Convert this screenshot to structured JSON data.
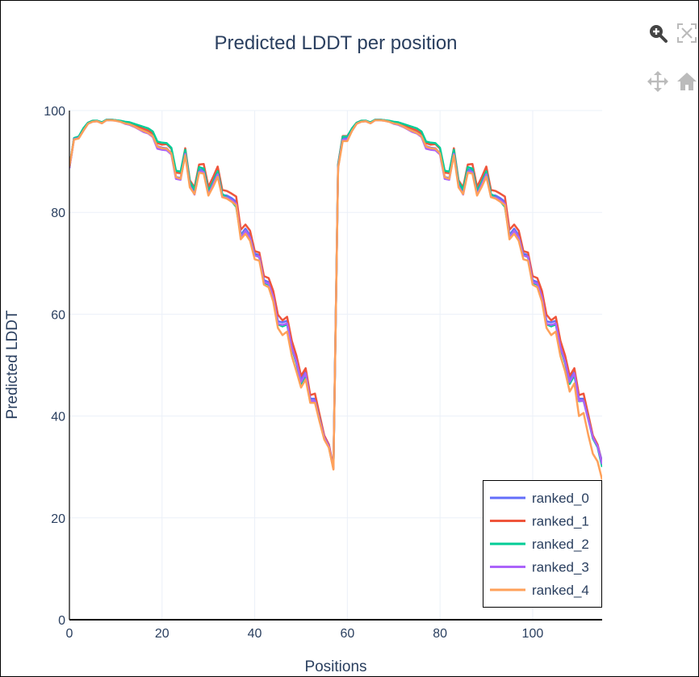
{
  "modebar": {
    "zoom_label": "Zoom",
    "autoscale_label": "Autoscale",
    "pan_label": "Pan",
    "reset_label": "Reset axes"
  },
  "chart_data": {
    "type": "line",
    "title": "Predicted LDDT per position",
    "xlabel": "Positions",
    "ylabel": "Predicted LDDT",
    "xlim": [
      0,
      115
    ],
    "ylim": [
      0,
      100
    ],
    "xticks": [
      0,
      20,
      40,
      60,
      80,
      100
    ],
    "yticks": [
      0,
      20,
      40,
      60,
      80,
      100
    ],
    "grid": true,
    "legend_position": "bottom-right",
    "x": [
      0,
      1,
      2,
      3,
      4,
      5,
      6,
      7,
      8,
      9,
      10,
      11,
      12,
      13,
      14,
      15,
      16,
      17,
      18,
      19,
      20,
      21,
      22,
      23,
      24,
      25,
      26,
      27,
      28,
      29,
      30,
      31,
      32,
      33,
      34,
      35,
      36,
      37,
      38,
      39,
      40,
      41,
      42,
      43,
      44,
      45,
      46,
      47,
      48,
      49,
      50,
      51,
      52,
      53,
      54,
      55,
      56,
      57,
      58,
      59,
      60,
      61,
      62,
      63,
      64,
      65,
      66,
      67,
      68,
      69,
      70,
      71,
      72,
      73,
      74,
      75,
      76,
      77,
      78,
      79,
      80,
      81,
      82,
      83,
      84,
      85,
      86,
      87,
      88,
      89,
      90,
      91,
      92,
      93,
      94,
      95,
      96,
      97,
      98,
      99,
      100,
      101,
      102,
      103,
      104,
      105,
      106,
      107,
      108,
      109,
      110,
      111,
      112,
      113,
      114,
      115
    ],
    "series": [
      {
        "name": "ranked_0",
        "color": "#636efa",
        "values": [
          88.8,
          94.5,
          94.8,
          96.2,
          97.5,
          97.9,
          98.0,
          97.6,
          98.2,
          98.2,
          98.1,
          97.9,
          97.5,
          97.3,
          96.9,
          96.4,
          96.0,
          95.7,
          95.1,
          93.0,
          92.7,
          92.6,
          91.6,
          87.0,
          86.7,
          91.7,
          85.5,
          83.9,
          88.4,
          88.3,
          83.9,
          85.8,
          87.9,
          83.4,
          83.3,
          82.8,
          82.1,
          75.6,
          76.8,
          75.5,
          71.9,
          71.6,
          66.7,
          66.3,
          63.8,
          58.6,
          58.4,
          58.7,
          54.0,
          51.2,
          47.2,
          48.9,
          43.4,
          43.4,
          39.7,
          36.1,
          34.4,
          29.9,
          89.0,
          94.5,
          94.5,
          96.2,
          97.5,
          97.9,
          98.0,
          97.6,
          98.2,
          98.2,
          98.1,
          97.9,
          97.5,
          97.3,
          96.9,
          96.4,
          96.0,
          95.7,
          95.1,
          93.0,
          92.7,
          92.6,
          91.6,
          87.0,
          86.7,
          91.7,
          85.5,
          83.9,
          88.4,
          88.3,
          83.9,
          85.8,
          87.9,
          83.4,
          83.3,
          82.8,
          82.1,
          75.6,
          76.8,
          75.5,
          71.9,
          71.6,
          66.7,
          66.3,
          63.8,
          58.6,
          58.4,
          58.7,
          54.0,
          51.2,
          47.2,
          48.9,
          43.4,
          43.4,
          39.7,
          36.1,
          34.4,
          31.0
        ]
      },
      {
        "name": "ranked_1",
        "color": "#ef553b",
        "values": [
          88.8,
          94.5,
          94.8,
          96.4,
          97.6,
          98.0,
          98.0,
          97.6,
          98.2,
          98.2,
          98.1,
          97.9,
          97.6,
          97.5,
          97.2,
          96.8,
          96.4,
          96.1,
          95.5,
          93.6,
          93.3,
          93.4,
          92.5,
          87.8,
          87.7,
          92.6,
          86.3,
          84.9,
          89.4,
          89.5,
          85.0,
          86.9,
          89.0,
          84.4,
          84.2,
          83.7,
          83.1,
          76.6,
          77.6,
          76.4,
          72.4,
          72.1,
          67.5,
          67.1,
          64.6,
          59.9,
          58.8,
          59.5,
          54.8,
          51.9,
          47.9,
          49.4,
          44.1,
          44.4,
          40.3,
          36.2,
          34.4,
          30.0,
          89.5,
          95.0,
          95.0,
          96.4,
          97.6,
          98.0,
          98.0,
          97.6,
          98.2,
          98.2,
          98.1,
          97.9,
          97.6,
          97.5,
          97.2,
          96.8,
          96.4,
          96.1,
          95.5,
          93.6,
          93.3,
          93.4,
          92.5,
          87.8,
          87.7,
          92.6,
          86.3,
          84.9,
          89.4,
          89.5,
          85.0,
          86.9,
          89.0,
          84.4,
          84.2,
          83.7,
          83.1,
          76.6,
          77.6,
          76.4,
          72.4,
          72.1,
          67.5,
          67.1,
          64.6,
          59.9,
          58.8,
          59.5,
          54.8,
          51.9,
          47.9,
          49.4,
          44.1,
          44.4,
          40.3,
          36.2,
          34.4,
          30.5
        ]
      },
      {
        "name": "ranked_2",
        "color": "#00cc96",
        "values": [
          88.9,
          94.6,
          94.9,
          96.5,
          97.6,
          98.0,
          98.0,
          97.7,
          98.2,
          98.2,
          98.1,
          98.0,
          97.8,
          97.7,
          97.4,
          97.1,
          96.8,
          96.5,
          95.9,
          93.9,
          93.7,
          93.6,
          92.7,
          88.2,
          88.0,
          92.3,
          86.0,
          84.5,
          88.9,
          88.6,
          84.2,
          86.0,
          88.1,
          83.6,
          83.0,
          82.2,
          81.1,
          75.4,
          76.4,
          75.1,
          71.6,
          71.2,
          66.2,
          65.8,
          63.0,
          58.0,
          57.6,
          58.0,
          53.3,
          50.4,
          46.3,
          48.0,
          42.9,
          43.0,
          39.4,
          35.6,
          33.9,
          29.7,
          89.3,
          94.9,
          94.9,
          96.5,
          97.6,
          98.0,
          98.0,
          97.7,
          98.2,
          98.2,
          98.1,
          98.0,
          97.8,
          97.7,
          97.4,
          97.1,
          96.8,
          96.5,
          95.9,
          93.9,
          93.7,
          93.6,
          92.7,
          88.2,
          88.0,
          92.3,
          86.0,
          84.5,
          88.9,
          88.6,
          84.2,
          86.0,
          88.1,
          83.6,
          83.0,
          82.2,
          81.1,
          75.4,
          76.4,
          75.1,
          71.6,
          71.2,
          66.2,
          65.8,
          63.0,
          58.0,
          57.6,
          58.0,
          53.3,
          50.4,
          46.3,
          48.0,
          42.9,
          43.0,
          39.4,
          35.6,
          33.9,
          30.0
        ]
      },
      {
        "name": "ranked_3",
        "color": "#ab63fa",
        "values": [
          88.7,
          94.4,
          94.6,
          96.0,
          97.4,
          97.8,
          97.9,
          97.5,
          98.1,
          98.1,
          98.0,
          97.8,
          97.4,
          97.2,
          96.8,
          96.3,
          95.8,
          95.5,
          94.8,
          92.5,
          92.3,
          92.2,
          91.4,
          86.6,
          86.4,
          91.5,
          85.2,
          83.5,
          88.0,
          87.9,
          83.5,
          85.5,
          87.5,
          83.0,
          82.9,
          82.4,
          81.7,
          75.2,
          76.4,
          75.1,
          71.5,
          71.3,
          66.3,
          66.0,
          63.4,
          58.1,
          57.9,
          58.2,
          53.5,
          50.7,
          46.7,
          48.4,
          43.0,
          43.0,
          39.3,
          35.8,
          34.1,
          29.6,
          88.9,
          94.3,
          94.3,
          96.0,
          97.4,
          97.8,
          97.9,
          97.5,
          98.1,
          98.1,
          98.0,
          97.8,
          97.4,
          97.2,
          96.8,
          96.3,
          95.8,
          95.5,
          94.8,
          92.5,
          92.3,
          92.2,
          91.4,
          86.6,
          86.4,
          91.5,
          85.2,
          83.5,
          88.0,
          87.9,
          83.5,
          85.5,
          87.5,
          83.0,
          82.9,
          82.4,
          81.7,
          75.2,
          76.4,
          75.1,
          71.5,
          71.3,
          66.3,
          66.0,
          63.4,
          58.1,
          57.9,
          58.2,
          53.5,
          50.7,
          46.7,
          48.4,
          43.0,
          43.0,
          39.3,
          35.8,
          34.1,
          30.5
        ]
      },
      {
        "name": "ranked_4",
        "color": "#ffa15a",
        "values": [
          89.0,
          94.3,
          94.5,
          96.0,
          97.4,
          97.8,
          97.9,
          97.5,
          98.1,
          98.1,
          98.0,
          97.8,
          97.5,
          97.3,
          96.9,
          96.4,
          96.0,
          95.6,
          95.0,
          92.9,
          92.6,
          92.5,
          91.6,
          86.9,
          86.6,
          91.2,
          84.9,
          83.6,
          87.8,
          87.6,
          83.3,
          85.0,
          87.0,
          83.0,
          82.7,
          82.1,
          81.4,
          74.7,
          75.8,
          74.4,
          70.8,
          70.5,
          65.8,
          65.3,
          62.5,
          57.3,
          55.9,
          56.6,
          51.8,
          48.8,
          45.6,
          47.2,
          42.6,
          42.6,
          38.9,
          35.4,
          33.8,
          29.5,
          88.7,
          94.0,
          94.0,
          96.0,
          97.4,
          97.8,
          97.9,
          97.5,
          98.1,
          98.1,
          98.0,
          97.8,
          97.5,
          97.3,
          96.9,
          96.4,
          96.0,
          95.6,
          95.0,
          92.9,
          92.6,
          92.5,
          91.6,
          86.9,
          86.6,
          91.2,
          84.9,
          83.6,
          87.8,
          87.6,
          83.3,
          85.0,
          87.0,
          83.0,
          82.7,
          82.1,
          81.4,
          74.7,
          75.8,
          74.4,
          70.8,
          70.5,
          65.8,
          65.3,
          62.5,
          57.3,
          55.9,
          56.6,
          51.8,
          48.8,
          44.8,
          46.4,
          40.0,
          40.6,
          36.3,
          32.6,
          31.1,
          27.5
        ]
      }
    ]
  }
}
